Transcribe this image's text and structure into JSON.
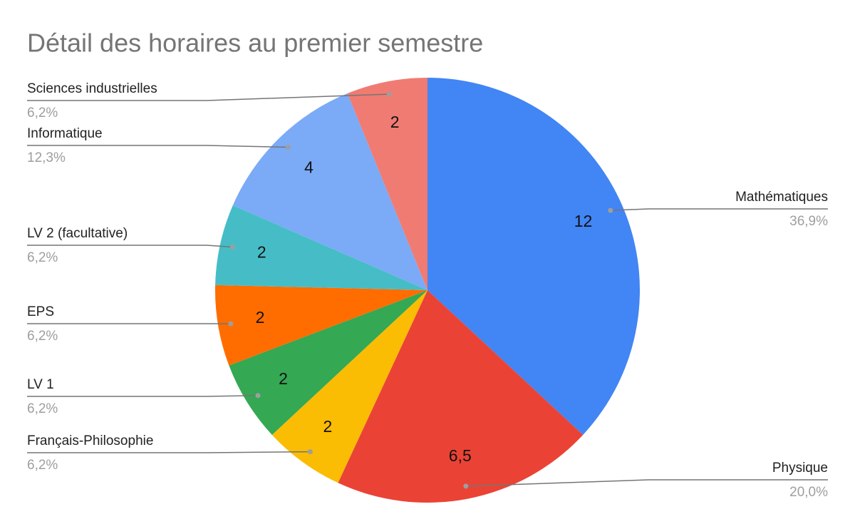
{
  "chart_data": {
    "type": "pie",
    "title": "Détail des horaires au premier semestre",
    "categories": [
      "Mathématiques",
      "Physique",
      "Français-Philosophie",
      "LV 1",
      "EPS",
      "LV 2 (facultative)",
      "Informatique",
      "Sciences industrielles"
    ],
    "values": [
      12,
      6.5,
      2,
      2,
      2,
      2,
      4,
      2
    ],
    "value_labels": [
      "12",
      "6,5",
      "2",
      "2",
      "2",
      "2",
      "4",
      "2"
    ],
    "percent_values": [
      36.9,
      20.0,
      6.2,
      6.2,
      6.2,
      6.2,
      12.3,
      6.2
    ],
    "percent_labels": [
      "36,9%",
      "20,0%",
      "6,2%",
      "6,2%",
      "6,2%",
      "6,2%",
      "12,3%",
      "6,2%"
    ],
    "colors": [
      "#4285f4",
      "#ea4335",
      "#fbbc04",
      "#34a853",
      "#ff6d01",
      "#46bdc6",
      "#7baaf7",
      "#f07b72"
    ]
  }
}
